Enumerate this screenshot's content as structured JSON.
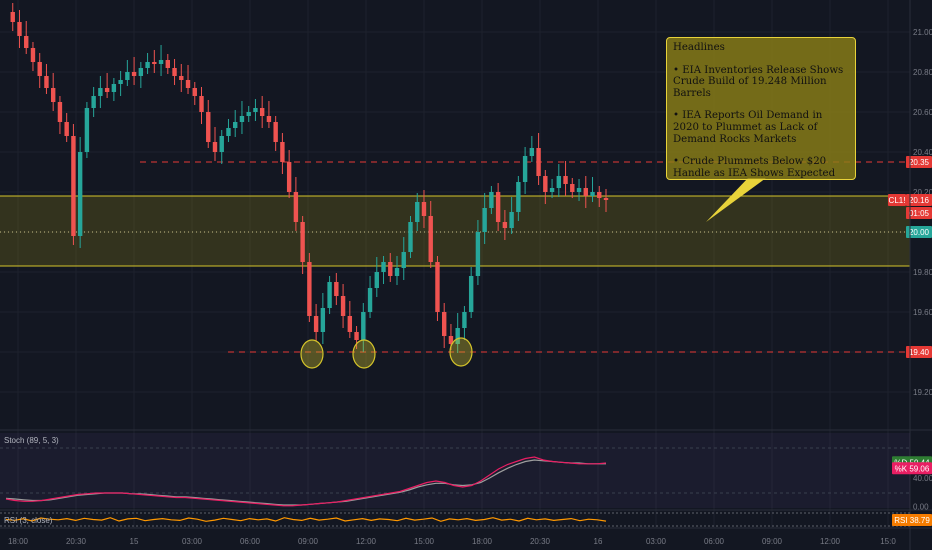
{
  "chart_data": {
    "type": "candlestick",
    "symbol": "CL1!",
    "price_axis": {
      "ticks": [
        "21.00",
        "20.80",
        "20.60",
        "20.40",
        "20.20",
        "20.00",
        "19.80",
        "19.60",
        "19.40",
        "19.20"
      ],
      "range": [
        19.02,
        21.12
      ]
    },
    "time_axis": {
      "ticks": [
        "18:00",
        "20:30",
        "15",
        "03:00",
        "06:00",
        "09:00",
        "12:00",
        "15:00",
        "18:00",
        "20:30",
        "16",
        "03:00",
        "06:00",
        "09:00",
        "12:00",
        "15:0"
      ]
    },
    "price_labels": [
      {
        "label": "20.35",
        "color": "#e53935"
      },
      {
        "label": "CL1!",
        "color": "#e53935"
      },
      {
        "label": "20.16",
        "color": "#e53935"
      },
      {
        "label": "01:05",
        "color": "#e53935"
      },
      {
        "label": "20.00",
        "color": "#26a69a"
      },
      {
        "label": "19.40",
        "color": "#e53935"
      }
    ],
    "lines": {
      "resistance_dashed": 20.35,
      "support_dashed": 19.4,
      "zone_top": 20.18,
      "zone_bottom": 19.83,
      "zone_mid_dotted": 20.0
    },
    "series": [
      {
        "name": "price",
        "values": [
          21.1,
          21.05,
          20.98,
          20.92,
          20.85,
          20.78,
          20.72,
          20.65,
          20.55,
          20.48,
          19.98,
          20.4,
          20.62,
          20.68,
          20.72,
          20.7,
          20.74,
          20.76,
          20.8,
          20.78,
          20.82,
          20.85,
          20.84,
          20.86,
          20.82,
          20.78,
          20.76,
          20.72,
          20.68,
          20.6,
          20.45,
          20.4,
          20.48,
          20.52,
          20.55,
          20.58,
          20.6,
          20.62,
          20.58,
          20.55,
          20.45,
          20.35,
          20.2,
          20.05,
          19.85,
          19.58,
          19.5,
          19.62,
          19.75,
          19.68,
          19.58,
          19.5,
          19.46,
          19.6,
          19.72,
          19.8,
          19.85,
          19.78,
          19.82,
          19.9,
          20.05,
          20.15,
          20.08,
          19.85,
          19.6,
          19.48,
          19.44,
          19.52,
          19.6,
          19.78,
          20.0,
          20.12,
          20.2,
          20.05,
          20.02,
          20.1,
          20.25,
          20.38,
          20.42,
          20.28,
          20.2,
          20.22,
          20.28,
          20.24,
          20.2,
          20.22,
          20.18,
          20.2,
          20.17,
          20.16
        ]
      },
      {
        "name": "Stoch %K",
        "values": [
          12,
          10,
          9,
          9,
          10,
          12,
          14,
          16,
          18,
          19,
          20,
          20,
          20,
          20,
          19,
          18,
          17,
          16,
          15,
          14,
          14,
          13,
          12,
          11,
          10,
          9,
          8,
          7,
          6,
          5,
          4,
          3,
          3,
          4,
          5,
          6,
          7,
          8,
          10,
          12,
          14,
          16,
          18,
          20,
          22,
          26,
          30,
          34,
          36,
          34,
          30,
          28,
          30,
          36,
          44,
          52,
          58,
          62,
          66,
          68,
          64,
          62,
          61,
          60,
          59,
          59,
          59,
          60
        ]
      },
      {
        "name": "Stoch %D",
        "values": [
          13,
          12,
          11,
          10,
          10,
          11,
          13,
          15,
          17,
          18,
          19,
          20,
          20,
          20,
          19,
          19,
          18,
          17,
          16,
          15,
          15,
          14,
          13,
          12,
          11,
          10,
          9,
          8,
          7,
          6,
          5,
          4,
          4,
          4,
          5,
          6,
          7,
          8,
          9,
          11,
          13,
          15,
          17,
          19,
          21,
          24,
          28,
          31,
          33,
          33,
          31,
          30,
          31,
          34,
          40,
          47,
          53,
          58,
          62,
          64,
          63,
          62,
          61,
          60,
          60,
          59,
          59,
          59
        ]
      },
      {
        "name": "RSI",
        "values": [
          50,
          45,
          55,
          40,
          60,
          52,
          48,
          56,
          44,
          58,
          50,
          46,
          62,
          40,
          54,
          58,
          42,
          50,
          56,
          48,
          44,
          60,
          52,
          38,
          46,
          58,
          50,
          42,
          56,
          48,
          54,
          40,
          62,
          50,
          44,
          58,
          46,
          52,
          60,
          40,
          48,
          56,
          44,
          54,
          50,
          42,
          58,
          46,
          52,
          60,
          38,
          54,
          48,
          56,
          44,
          50,
          62,
          46,
          52,
          40,
          58,
          48,
          54,
          44,
          50,
          56,
          42,
          52,
          48,
          39
        ]
      }
    ],
    "indicators": [
      {
        "label": "Stoch (89, 5, 3)",
        "ticks": [
          "40.00",
          "0.00"
        ],
        "values": [
          {
            "label": "%D",
            "value": "59.44"
          },
          {
            "label": "%K",
            "value": "59.06"
          }
        ]
      },
      {
        "label": "RSI (3, close)",
        "value": "38.79"
      }
    ],
    "annotation": {
      "title": "Headlines",
      "items": [
        "• EIA Inventories Release Shows Crude Build of 19.248 Million Barrels",
        "• IEA Reports Oil Demand in 2020 to Plummet as Lack of Demand Rocks Markets",
        "• Crude Plummets Below $20 Handle as IEA Shows Expected Demand to Fall"
      ]
    },
    "colors": {
      "up": "#26a69a",
      "down": "#ef5350",
      "zone": "#8a7e16",
      "background": "#131722"
    }
  }
}
